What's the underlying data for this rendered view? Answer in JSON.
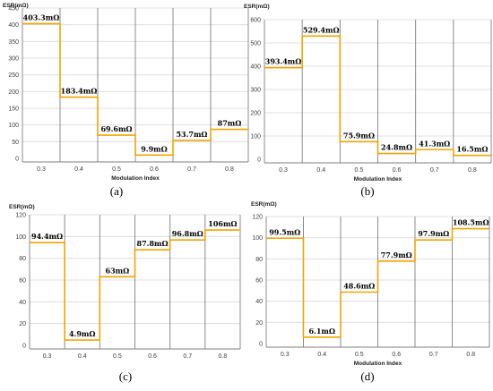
{
  "chart_data": [
    {
      "type": "line",
      "caption": "(a)",
      "ylabel": "ESR(mΩ)",
      "xlabel": "Modulation Index",
      "categories": [
        "0.3",
        "0.4",
        "0.5",
        "0.6",
        "0.7",
        "0.8"
      ],
      "values": [
        403.3,
        183.4,
        69.6,
        9.9,
        53.7,
        87
      ],
      "data_labels": [
        "403.3mΩ",
        "183.4mΩ",
        "69.6mΩ",
        "9.9mΩ",
        "53.7mΩ",
        "87mΩ"
      ],
      "ylim": [
        0,
        450
      ],
      "yticks": [
        0,
        50,
        100,
        150,
        200,
        250,
        300,
        350,
        400,
        450
      ],
      "grid": true
    },
    {
      "type": "line",
      "caption": "(b)",
      "ylabel": "ESR(mΩ)",
      "xlabel": "Modulation Index",
      "categories": [
        "0.3",
        "0.4",
        "0.5",
        "0.6",
        "0.7",
        "0.8"
      ],
      "values": [
        393.4,
        529.4,
        75.9,
        24.8,
        41.3,
        16.5
      ],
      "data_labels": [
        "393.4mΩ",
        "529.4mΩ",
        "75.9mΩ",
        "24.8mΩ",
        "41.3mΩ",
        "16.5mΩ"
      ],
      "ylim": [
        0,
        600
      ],
      "yticks": [
        0,
        100,
        200,
        300,
        400,
        500,
        600
      ],
      "grid": true
    },
    {
      "type": "line",
      "caption": "(c)",
      "ylabel": "ESR(mΩ)",
      "xlabel": "",
      "categories": [
        "0.3",
        "0.4",
        "0.5",
        "0.6",
        "0.7",
        "0.8"
      ],
      "values": [
        94.4,
        4.9,
        63,
        87.8,
        96.8,
        106
      ],
      "data_labels": [
        "94.4mΩ",
        "4.9mΩ",
        "63mΩ",
        "87.8mΩ",
        "96.8mΩ",
        "106mΩ"
      ],
      "ylim": [
        0,
        120
      ],
      "yticks": [
        0,
        20,
        40,
        60,
        80,
        100,
        120
      ],
      "grid": true
    },
    {
      "type": "line",
      "caption": "(d)",
      "ylabel": "ESR(mΩ)",
      "xlabel": "Modulation Index",
      "categories": [
        "0.3",
        "0.4",
        "0.5",
        "0.6",
        "0.7",
        "0.8"
      ],
      "values": [
        99.5,
        6.1,
        48.6,
        77.9,
        97.9,
        108.5
      ],
      "data_labels": [
        "99.5mΩ",
        "6.1mΩ",
        "48.6mΩ",
        "77.9mΩ",
        "97.9mΩ",
        "108.5mΩ"
      ],
      "ylim": [
        0,
        120
      ],
      "yticks": [
        0,
        20,
        40,
        60,
        80,
        100,
        120
      ],
      "grid": true
    }
  ]
}
